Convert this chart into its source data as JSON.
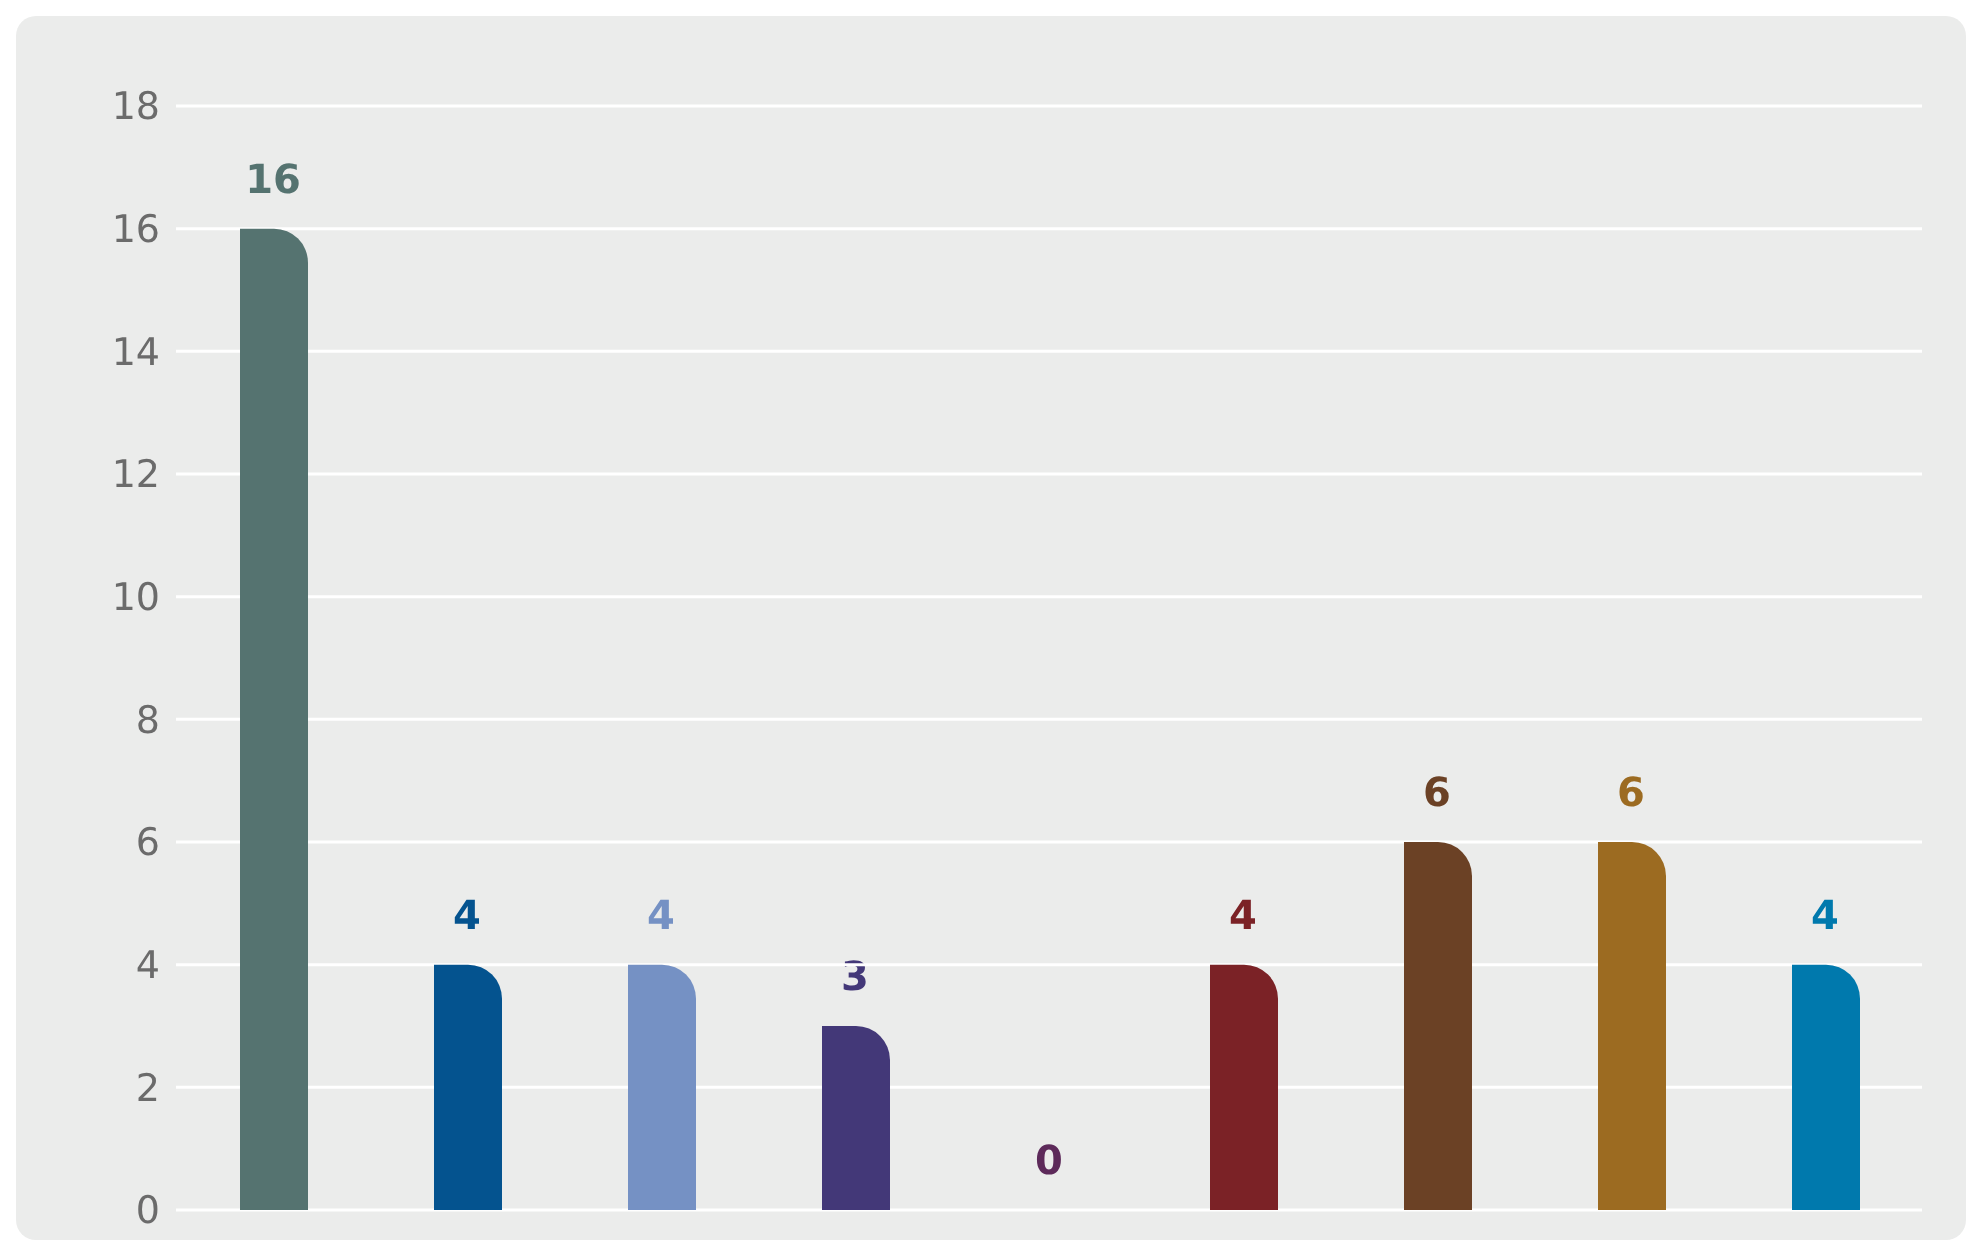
{
  "chart_data": {
    "type": "bar",
    "categories": [
      null,
      null,
      null,
      null,
      null,
      null,
      null,
      null,
      null
    ],
    "values": [
      16,
      4,
      4,
      3,
      0,
      4,
      6,
      6,
      4
    ],
    "colors": [
      "#557370",
      "#04538f",
      "#7591c4",
      "#433878",
      "#5d2a5a",
      "#7b2226",
      "#6b4125",
      "#9c6b21",
      "#0079ad"
    ],
    "ylim": [
      0,
      18
    ],
    "yticks": [
      0,
      2,
      4,
      6,
      8,
      10,
      12,
      14,
      16,
      18
    ],
    "grid": "y",
    "data_labels": true,
    "tick_labels": "y"
  }
}
